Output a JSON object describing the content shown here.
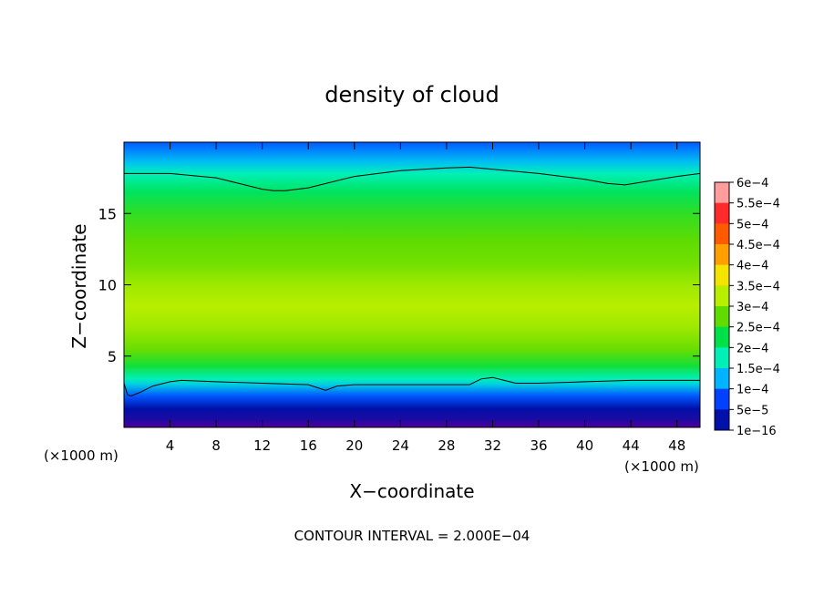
{
  "chart_data": {
    "type": "heatmap",
    "title": "density of cloud",
    "xlabel": "X−coordinate",
    "ylabel": "Z−coordinate",
    "x_unit_left": "(×1000 m)",
    "x_unit_right": "(×1000 m)",
    "footer": "CONTOUR INTERVAL = 2.000E−04",
    "xlim": [
      0,
      50
    ],
    "ylim": [
      0,
      20
    ],
    "x_ticks": [
      4,
      8,
      12,
      16,
      20,
      24,
      28,
      32,
      36,
      40,
      44,
      48
    ],
    "x_tick_labels": [
      "4",
      "8",
      "12",
      "16",
      "20",
      "24",
      "28",
      "32",
      "36",
      "40",
      "44",
      "48"
    ],
    "y_ticks": [
      5,
      10,
      15
    ],
    "y_tick_labels": [
      "5",
      "10",
      "15"
    ],
    "colorbar": {
      "labels": [
        "6e−4",
        "5.5e−4",
        "5e−4",
        "4.5e−4",
        "4e−4",
        "3.5e−4",
        "3e−4",
        "2.5e−4",
        "2e−4",
        "1.5e−4",
        "1e−4",
        "5e−5",
        "1e−16"
      ],
      "values": [
        0.0006,
        0.00055,
        0.0005,
        0.00045,
        0.0004,
        0.00035,
        0.0003,
        0.00025,
        0.0002,
        0.00015,
        0.0001,
        5e-05,
        1e-16
      ],
      "colors": [
        "#ff9d9d",
        "#ff2a2a",
        "#ff5a00",
        "#ffa000",
        "#f5e400",
        "#b8ee00",
        "#60dc00",
        "#00e048",
        "#00f0b8",
        "#00b4ff",
        "#0040ff",
        "#0010a8",
        "#50009a"
      ]
    },
    "contour_levels": [
      0.0002
    ],
    "upper_contour_z": {
      "x": [
        0,
        4,
        8,
        10,
        12,
        13,
        14,
        16,
        20,
        24,
        28,
        30,
        32,
        36,
        40,
        42,
        43.5,
        45,
        48,
        50
      ],
      "z": [
        17.8,
        17.8,
        17.5,
        17.1,
        16.7,
        16.6,
        16.6,
        16.8,
        17.6,
        18.0,
        18.2,
        18.25,
        18.1,
        17.8,
        17.4,
        17.1,
        17.0,
        17.2,
        17.6,
        17.8
      ]
    },
    "lower_contour_z": {
      "x": [
        0,
        0.3,
        0.6,
        1.5,
        2.5,
        4,
        5,
        8,
        12,
        16,
        17.5,
        18.5,
        20,
        24,
        28,
        30,
        31,
        32,
        33,
        34,
        36,
        40,
        44,
        48,
        50
      ],
      "z": [
        3.1,
        2.3,
        2.2,
        2.5,
        2.9,
        3.2,
        3.3,
        3.2,
        3.1,
        3.0,
        2.6,
        2.9,
        3.0,
        3.0,
        3.0,
        3.0,
        3.4,
        3.5,
        3.3,
        3.1,
        3.1,
        3.2,
        3.3,
        3.3,
        3.3
      ]
    },
    "vertical_profile": [
      {
        "z": 0.0,
        "value": 1e-16
      },
      {
        "z": 0.5,
        "value": 3e-05
      },
      {
        "z": 1.3,
        "value": 5e-05
      },
      {
        "z": 2.2,
        "value": 0.00011
      },
      {
        "z": 3.0,
        "value": 0.00017
      },
      {
        "z": 3.4,
        "value": 0.0002
      },
      {
        "z": 4.3,
        "value": 0.00026
      },
      {
        "z": 5.5,
        "value": 0.000305
      },
      {
        "z": 7.0,
        "value": 0.000335
      },
      {
        "z": 8.5,
        "value": 0.00035
      },
      {
        "z": 10.0,
        "value": 0.000335
      },
      {
        "z": 11.5,
        "value": 0.00031
      },
      {
        "z": 13.0,
        "value": 0.0003
      },
      {
        "z": 15.0,
        "value": 0.000275
      },
      {
        "z": 16.5,
        "value": 0.00024
      },
      {
        "z": 17.8,
        "value": 0.0002
      },
      {
        "z": 18.6,
        "value": 0.00016
      },
      {
        "z": 19.4,
        "value": 0.00013
      },
      {
        "z": 20.0,
        "value": 0.00011
      }
    ]
  }
}
